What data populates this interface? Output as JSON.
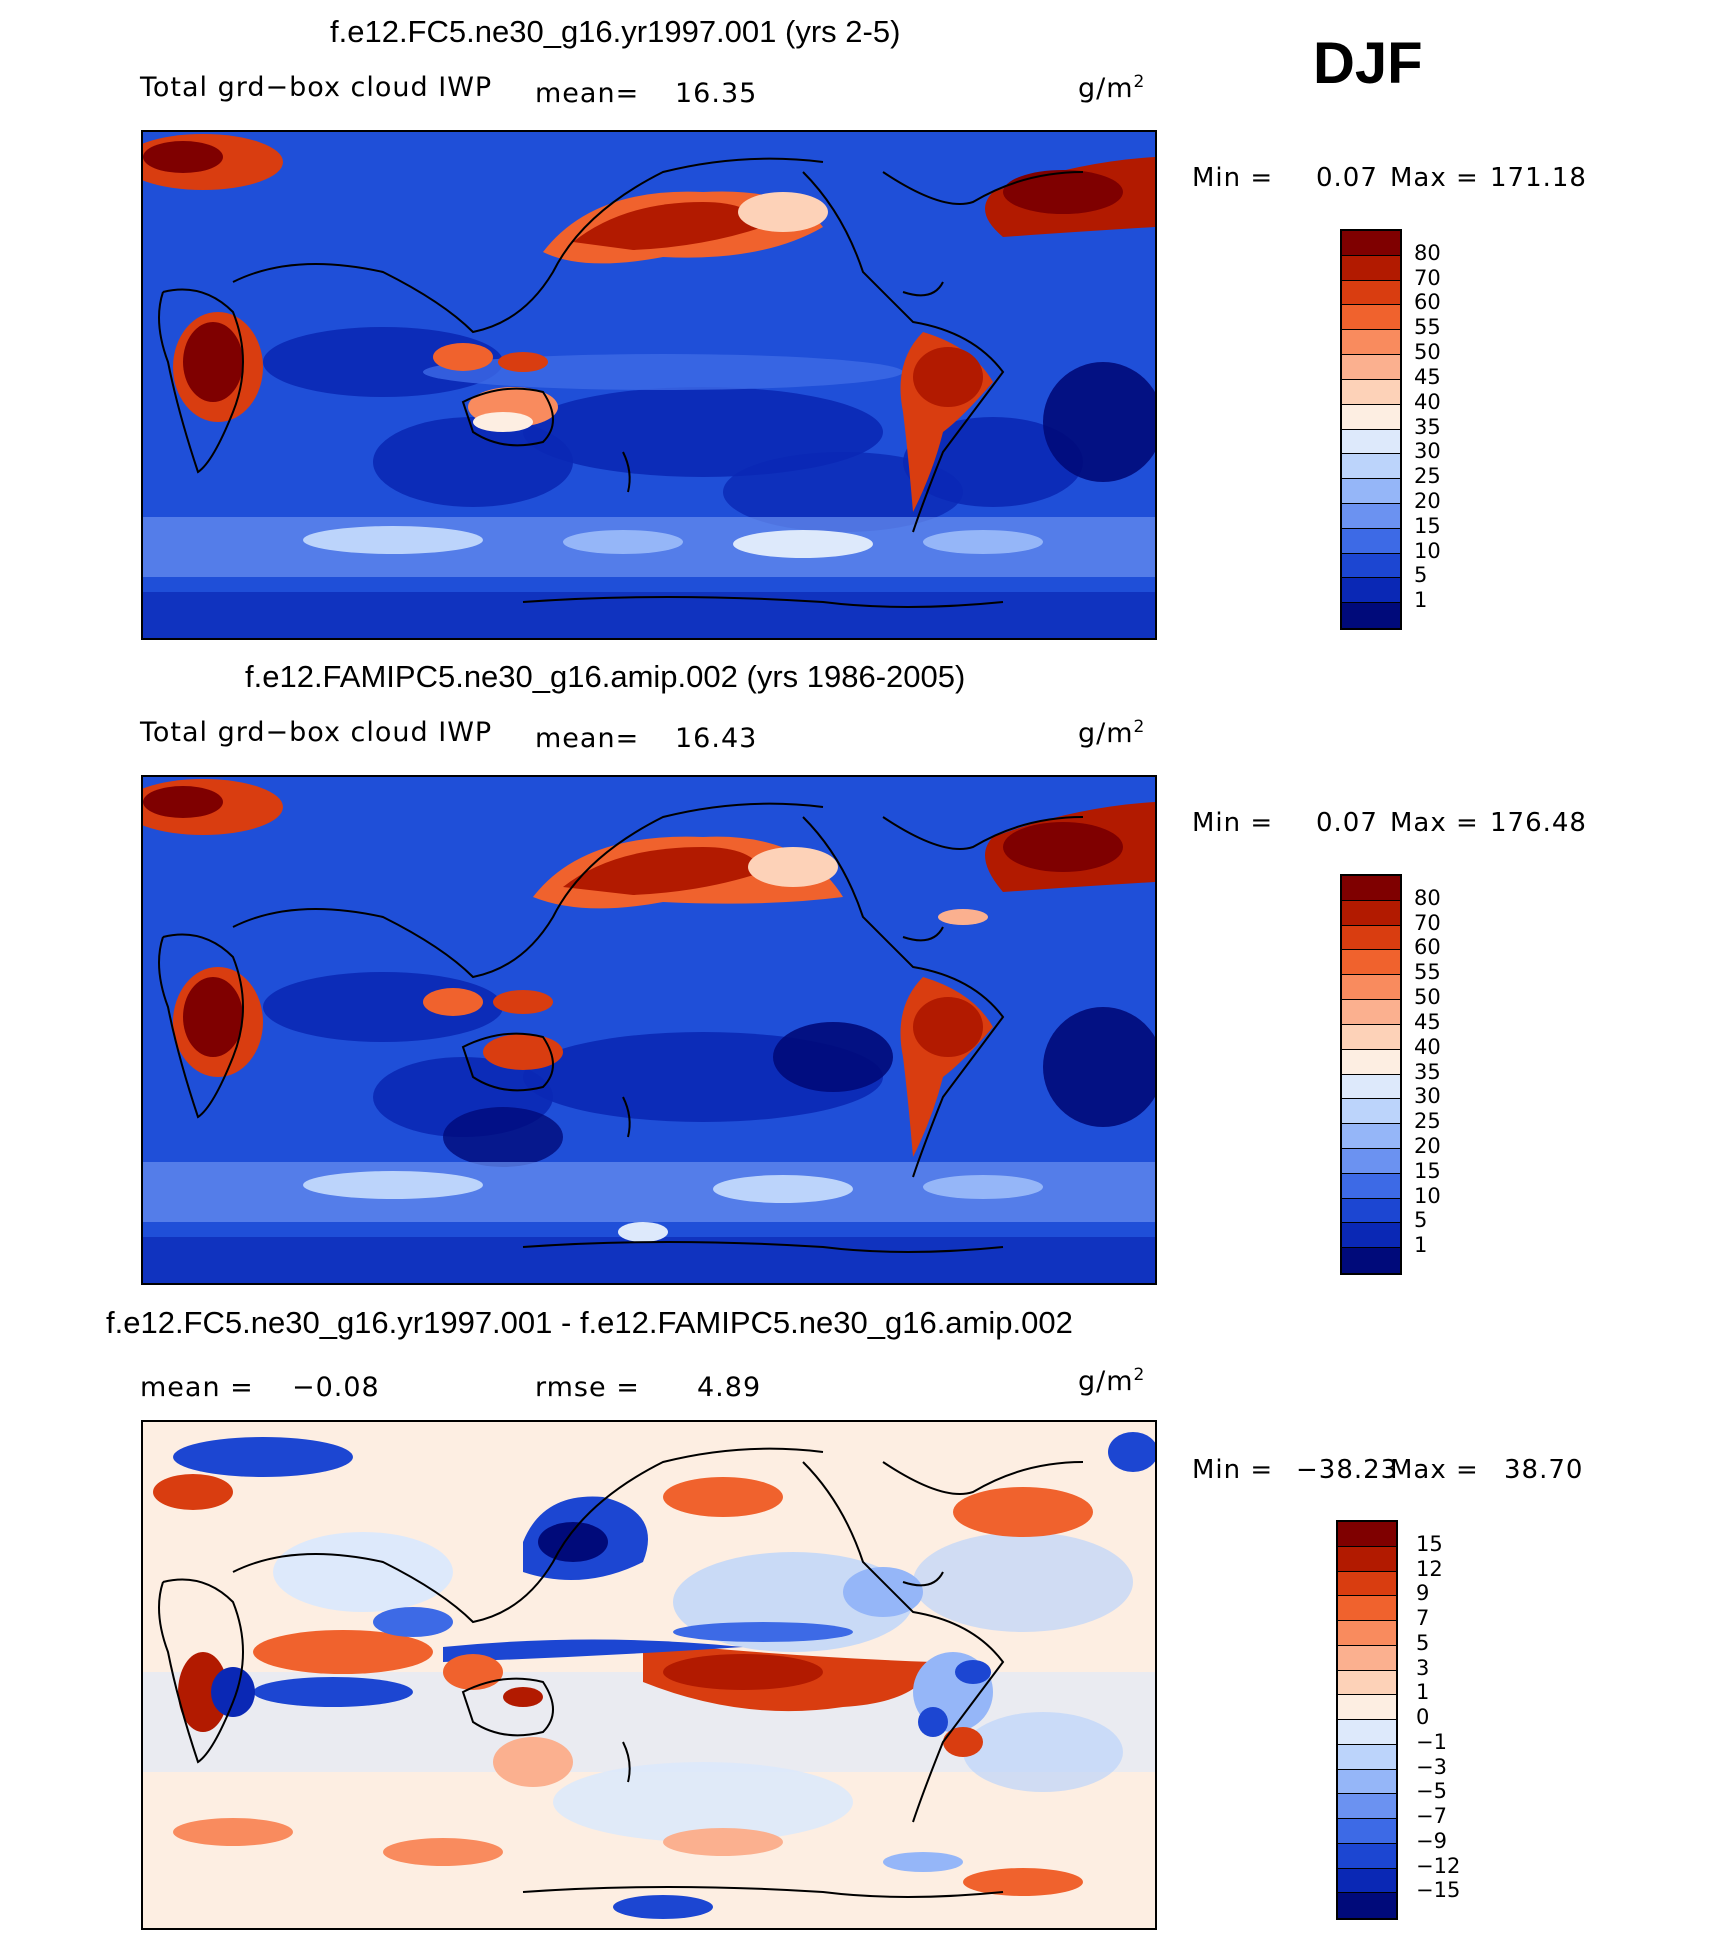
{
  "season": "DJF",
  "units_text": "g/m",
  "units_sup": "2",
  "panel1": {
    "title": "f.e12.FC5.ne30_g16.yr1997.001 (yrs 2-5)",
    "variable": "Total grd−box cloud IWP",
    "mean_label": "mean=",
    "mean_value": "16.35",
    "min_label": "Min =",
    "min_value": "0.07",
    "max_label": "Max =",
    "max_value": "171.18"
  },
  "panel2": {
    "title": "f.e12.FAMIPC5.ne30_g16.amip.002 (yrs 1986-2005)",
    "variable": "Total grd−box cloud IWP",
    "mean_label": "mean=",
    "mean_value": "16.43",
    "min_label": "Min =",
    "min_value": "0.07",
    "max_label": "Max =",
    "max_value": "176.48"
  },
  "panel3": {
    "title": "f.e12.FC5.ne30_g16.yr1997.001 - f.e12.FAMIPC5.ne30_g16.amip.002",
    "mean_label": "mean =",
    "mean_value": "−0.08",
    "rmse_label": "rmse =",
    "rmse_value": "4.89",
    "min_label": "Min =",
    "min_value": "−38.23",
    "max_label": "Max =",
    "max_value": "38.70"
  },
  "colorbar_abs": {
    "labels": [
      "80",
      "70",
      "60",
      "55",
      "50",
      "45",
      "40",
      "35",
      "30",
      "25",
      "20",
      "15",
      "10",
      "5",
      "1"
    ],
    "colors": [
      "#7f0000",
      "#b21a00",
      "#d93d10",
      "#f0622d",
      "#f98b5e",
      "#fbb08f",
      "#fdd2b8",
      "#fdeee2",
      "#dde9fb",
      "#bcd4fb",
      "#95b6f8",
      "#6b92f1",
      "#3d6ae6",
      "#1c46d2",
      "#0a28b5",
      "#000a7a"
    ]
  },
  "colorbar_diff": {
    "labels": [
      "15",
      "12",
      "9",
      "7",
      "5",
      "3",
      "1",
      "0",
      "−1",
      "−3",
      "−5",
      "−7",
      "−9",
      "−12",
      "−15"
    ],
    "colors": [
      "#7f0000",
      "#b21a00",
      "#d93d10",
      "#f0622d",
      "#f98b5e",
      "#fbb08f",
      "#fdd2b8",
      "#fdeee2",
      "#dde9fb",
      "#bcd4fb",
      "#95b6f8",
      "#6b92f1",
      "#3d6ae6",
      "#1c46d2",
      "#0a28b5",
      "#000a7a"
    ]
  }
}
